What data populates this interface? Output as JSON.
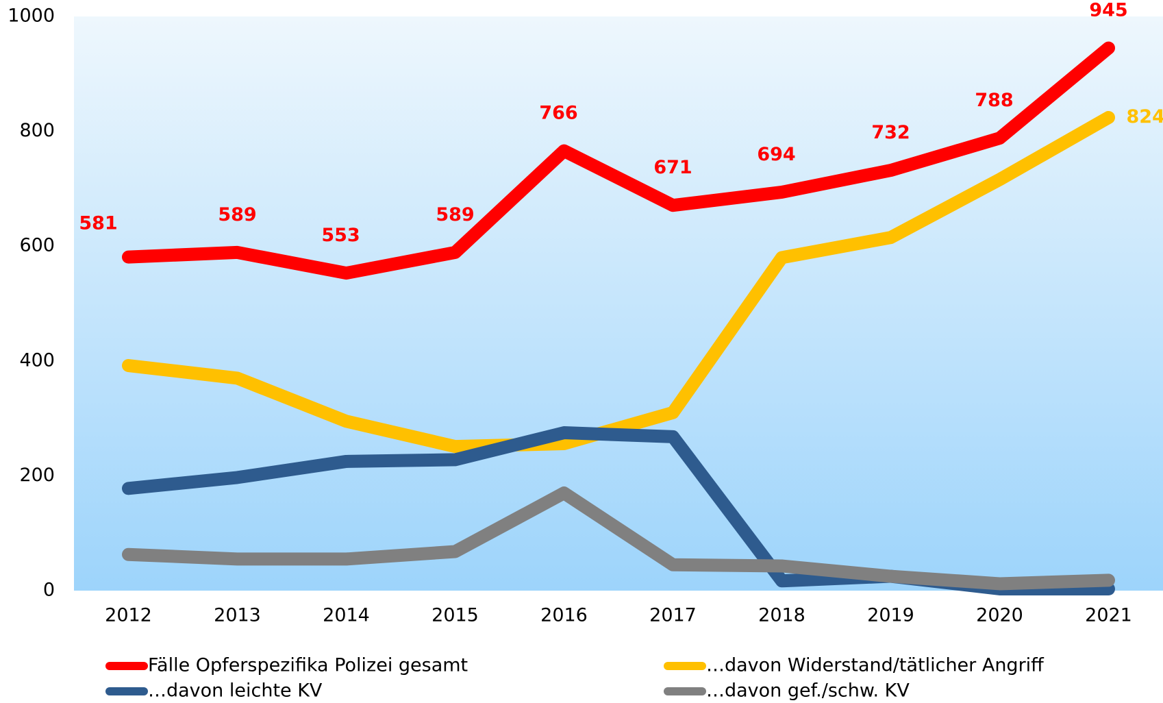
{
  "chart_data": {
    "type": "line",
    "categories": [
      "2012",
      "2013",
      "2014",
      "2015",
      "2016",
      "2017",
      "2018",
      "2019",
      "2020",
      "2021"
    ],
    "series": [
      {
        "name": "Fälle Opferspezifika Polizei gesamt",
        "color": "#ff0000",
        "data_labels": "all",
        "values": [
          581,
          589,
          553,
          589,
          766,
          671,
          694,
          732,
          788,
          945
        ]
      },
      {
        "name": "…davon Widerstand/tätlicher Angriff",
        "color": "#ffc000",
        "data_labels": "last",
        "values": [
          392,
          370,
          295,
          251,
          256,
          310,
          580,
          615,
          716,
          824
        ]
      },
      {
        "name": "…davon leichte KV",
        "color": "#2e5b8e",
        "values": [
          178,
          197,
          225,
          228,
          275,
          268,
          17,
          25,
          3,
          3
        ]
      },
      {
        "name": "…davon gef./schw. KV",
        "color": "#808080",
        "values": [
          63,
          55,
          55,
          68,
          170,
          45,
          43,
          25,
          12,
          18
        ]
      }
    ],
    "ylim": [
      0,
      1000
    ],
    "yticks": [
      0,
      200,
      400,
      600,
      800,
      1000
    ],
    "grid": false
  }
}
